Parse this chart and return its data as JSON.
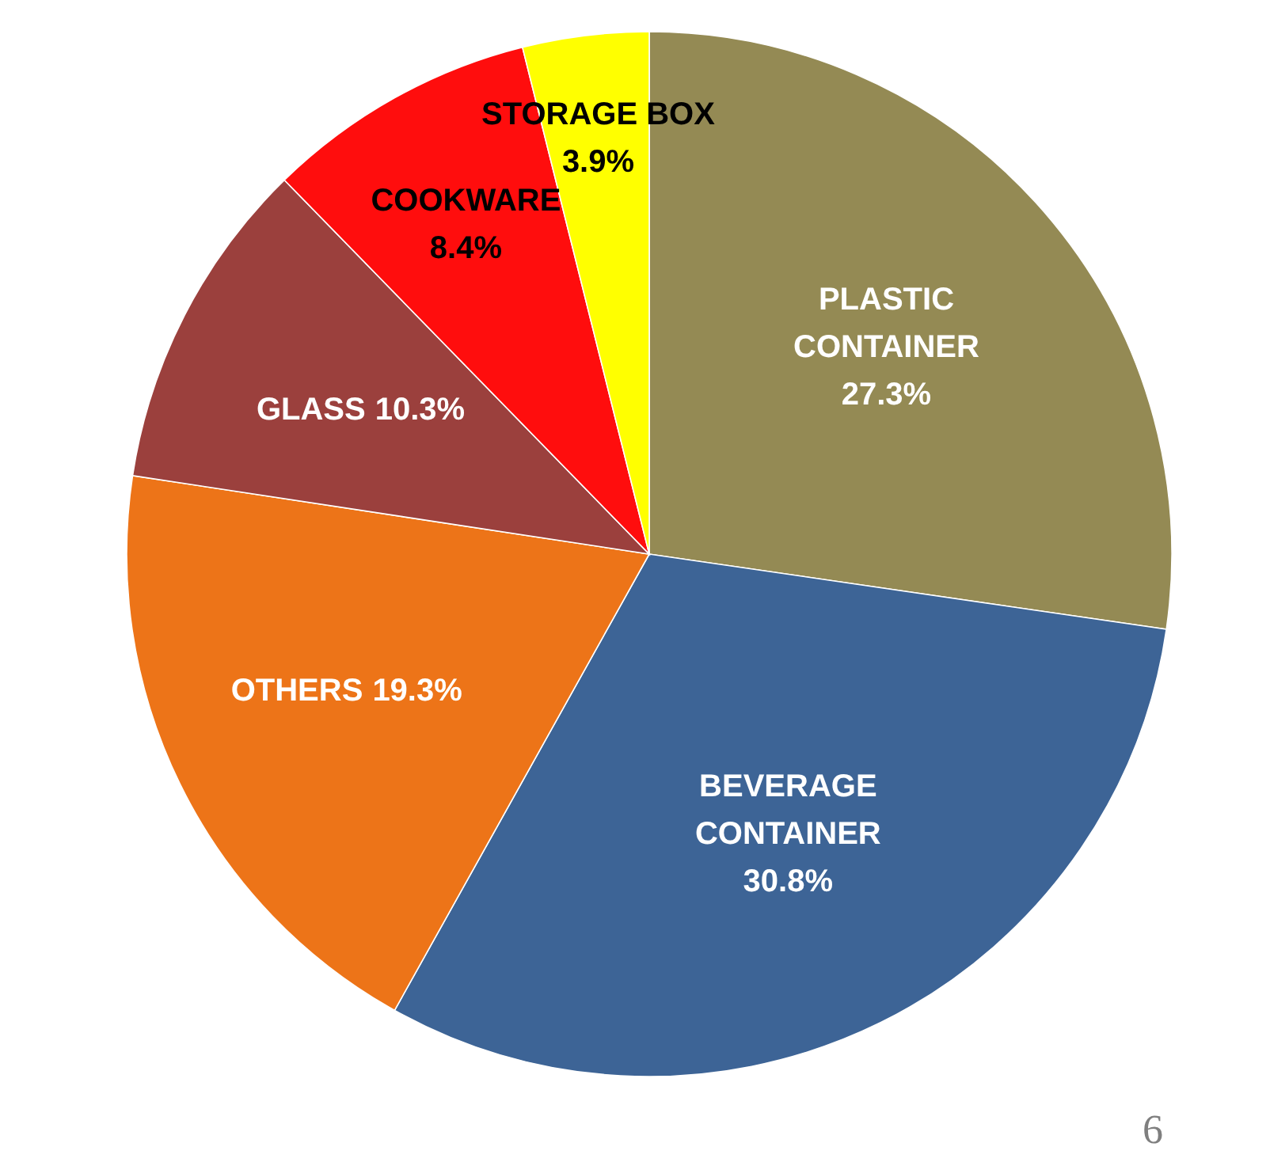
{
  "chart_data": {
    "type": "pie",
    "categories": [
      "PLASTIC CONTAINER",
      "BEVERAGE CONTAINER",
      "OTHERS",
      "GLASS",
      "COOKWARE",
      "STORAGE BOX"
    ],
    "values": [
      27.3,
      30.8,
      19.3,
      10.3,
      8.4,
      3.9
    ],
    "colors": [
      "#948a54",
      "#3d6496",
      "#ed7418",
      "#9b403d",
      "#ff0d0d",
      "#ffff00"
    ],
    "value_labels": [
      "27.3%",
      "30.8%",
      "19.3%",
      "10.3%",
      "8.4%",
      "3.9%"
    ],
    "annotations": [
      "6"
    ]
  }
}
